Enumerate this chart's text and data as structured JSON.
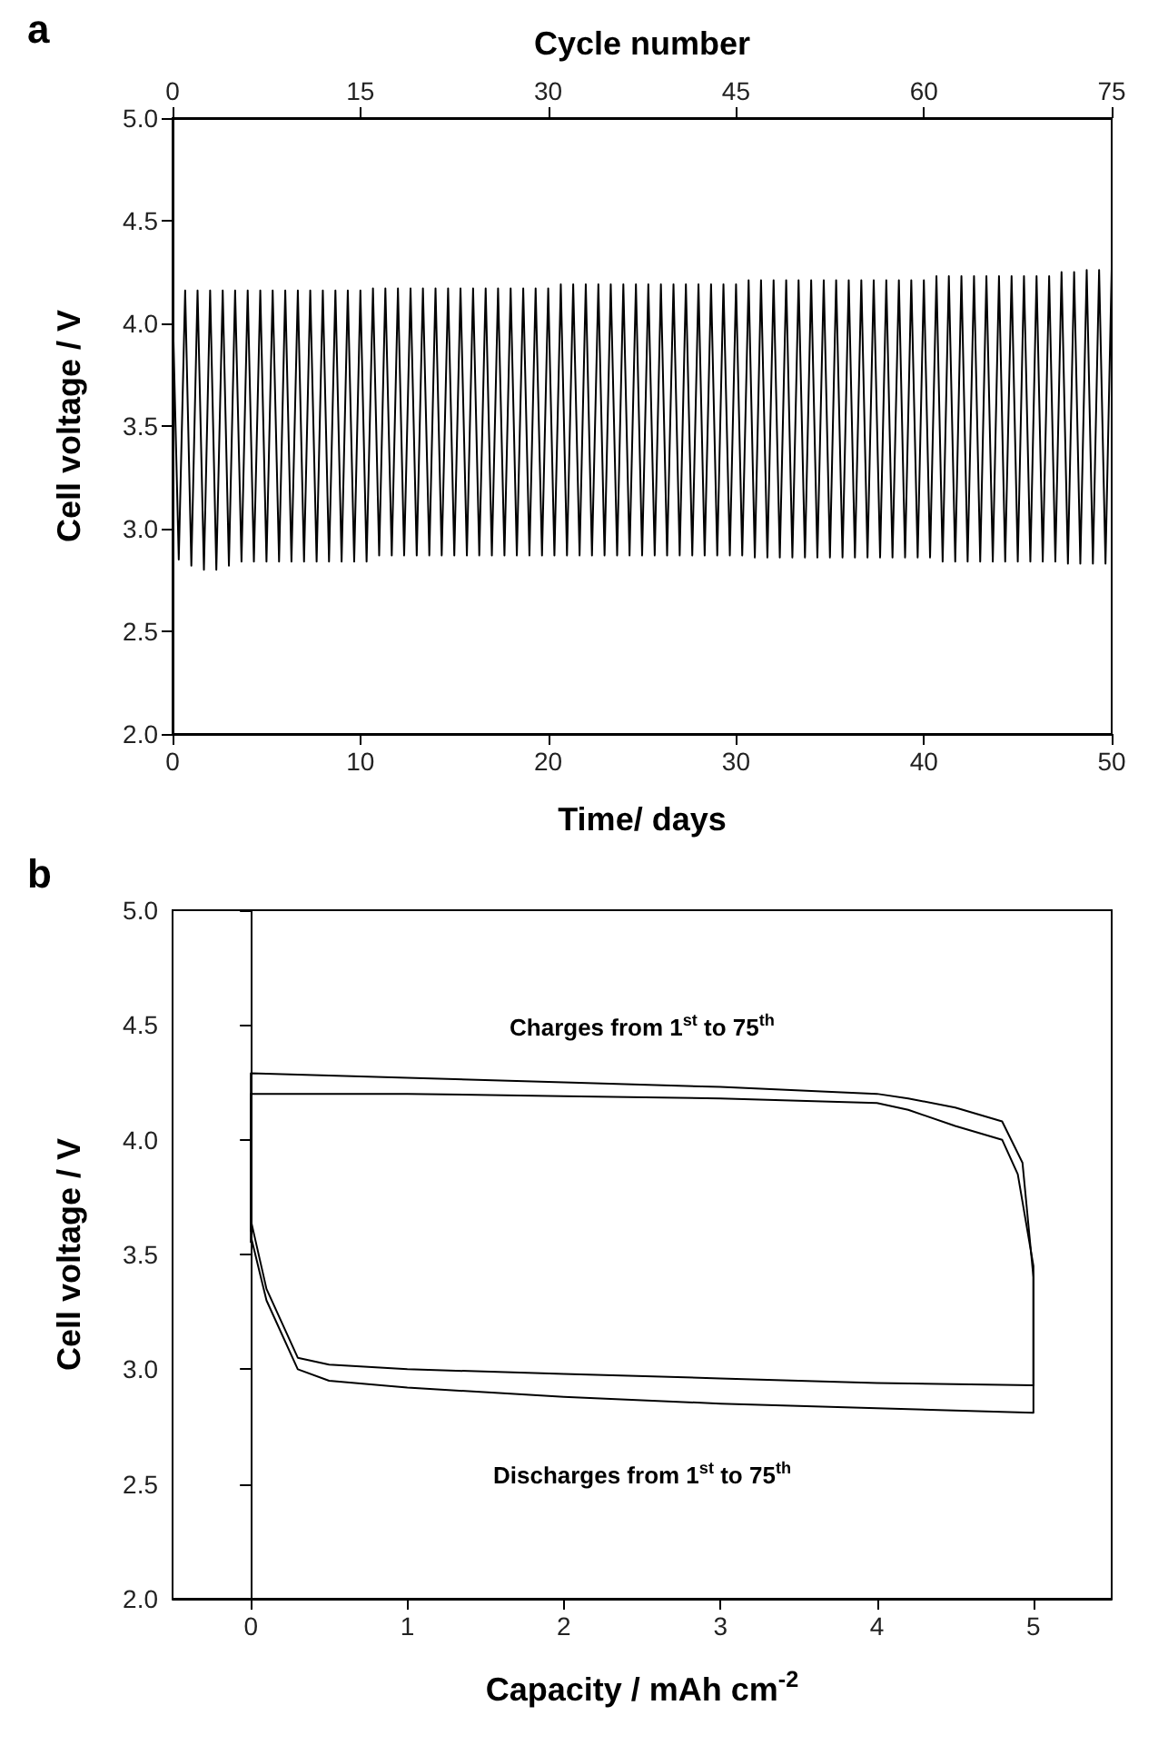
{
  "chart_data": [
    {
      "type": "line",
      "title": "a",
      "xlabel": "Time/ days",
      "x2label": "Cycle number",
      "ylabel": "Cell voltage / V",
      "xlim": [
        0,
        50
      ],
      "xticks": [
        0,
        10,
        20,
        30,
        40,
        50
      ],
      "x2lim": [
        0,
        75
      ],
      "x2ticks": [
        0,
        15,
        30,
        45,
        60,
        75
      ],
      "ylim": [
        2,
        5
      ],
      "yticks": [
        {
          "value": 2,
          "label": "2.0"
        },
        {
          "value": 2.5,
          "label": "2.5"
        },
        {
          "value": 3,
          "label": "3.0"
        },
        {
          "value": 3.5,
          "label": "3.5"
        },
        {
          "value": 4,
          "label": "4.0"
        },
        {
          "value": 4.5,
          "label": "4.5"
        },
        {
          "value": 5,
          "label": "5.0"
        }
      ],
      "series": [
        {
          "color": "#000000",
          "x": [
            0,
            0.33,
            0.67,
            1,
            1.33,
            1.67,
            2,
            2.33,
            2.67,
            3,
            3.33,
            3.67,
            4,
            4.33,
            4.67,
            5,
            5.33,
            5.67,
            6,
            6.33,
            6.67,
            7,
            7.33,
            7.67,
            8,
            8.33,
            8.67,
            9,
            9.33,
            9.67,
            10,
            10.33,
            10.67,
            11,
            11.33,
            11.67,
            12,
            12.33,
            12.67,
            13,
            13.33,
            13.67,
            14,
            14.33,
            14.67,
            15,
            15.33,
            15.67,
            16,
            16.33,
            16.67,
            17,
            17.33,
            17.67,
            18,
            18.33,
            18.67,
            19,
            19.33,
            19.67,
            20,
            20.33,
            20.67,
            21,
            21.33,
            21.67,
            22,
            22.33,
            22.67,
            23,
            23.33,
            23.67,
            24,
            24.33,
            24.67,
            25,
            25.33,
            25.67,
            26,
            26.33,
            26.67,
            27,
            27.33,
            27.67,
            28,
            28.33,
            28.67,
            29,
            29.33,
            29.67,
            30,
            30.33,
            30.67,
            31,
            31.33,
            31.67,
            32,
            32.33,
            32.67,
            33,
            33.33,
            33.67,
            34,
            34.33,
            34.67,
            35,
            35.33,
            35.67,
            36,
            36.33,
            36.67,
            37,
            37.33,
            37.67,
            38,
            38.33,
            38.67,
            39,
            39.33,
            39.67,
            40,
            40.33,
            40.67,
            41,
            41.33,
            41.67,
            42,
            42.33,
            42.67,
            43,
            43.33,
            43.67,
            44,
            44.33,
            44.67,
            45,
            45.33,
            45.67,
            46,
            46.33,
            46.67,
            47,
            47.33,
            47.67,
            48,
            48.33,
            48.67,
            49,
            49.33,
            49.67,
            50
          ],
          "values": [
            4.1,
            2.85,
            4.16,
            2.82,
            4.16,
            2.8,
            4.16,
            2.8,
            4.16,
            2.82,
            4.16,
            2.84,
            4.16,
            2.84,
            4.16,
            2.84,
            4.16,
            2.84,
            4.16,
            2.84,
            4.16,
            2.84,
            4.16,
            2.84,
            4.16,
            2.84,
            4.16,
            2.84,
            4.16,
            2.84,
            4.16,
            2.84,
            4.17,
            2.87,
            4.17,
            2.87,
            4.17,
            2.87,
            4.17,
            2.87,
            4.17,
            2.87,
            4.17,
            2.87,
            4.17,
            2.87,
            4.17,
            2.87,
            4.17,
            2.87,
            4.17,
            2.87,
            4.17,
            2.87,
            4.17,
            2.87,
            4.17,
            2.87,
            4.17,
            2.87,
            4.17,
            2.87,
            4.19,
            2.87,
            4.19,
            2.87,
            4.19,
            2.87,
            4.19,
            2.87,
            4.19,
            2.87,
            4.19,
            2.87,
            4.19,
            2.87,
            4.19,
            2.87,
            4.19,
            2.87,
            4.19,
            2.87,
            4.19,
            2.87,
            4.19,
            2.87,
            4.19,
            2.87,
            4.19,
            2.87,
            4.19,
            2.87,
            4.21,
            2.86,
            4.21,
            2.86,
            4.21,
            2.86,
            4.21,
            2.86,
            4.21,
            2.86,
            4.21,
            2.86,
            4.21,
            2.86,
            4.21,
            2.86,
            4.21,
            2.86,
            4.21,
            2.86,
            4.21,
            2.86,
            4.21,
            2.86,
            4.21,
            2.86,
            4.21,
            2.86,
            4.21,
            2.86,
            4.23,
            2.84,
            4.23,
            2.84,
            4.23,
            2.84,
            4.23,
            2.84,
            4.23,
            2.84,
            4.23,
            2.84,
            4.23,
            2.84,
            4.23,
            2.84,
            4.23,
            2.84,
            4.23,
            2.84,
            4.25,
            2.83,
            4.25,
            2.83,
            4.26,
            2.83,
            4.26,
            2.83,
            4.27
          ]
        }
      ]
    },
    {
      "type": "line",
      "title": "b",
      "xlabel": "Capacity / mAh cm$^{-2}$",
      "ylabel": "Cell voltage / V",
      "xlim": [
        -0.5,
        5.5
      ],
      "xticks": [
        0,
        1,
        2,
        3,
        4,
        5
      ],
      "ylim": [
        2,
        5
      ],
      "yticks": [
        {
          "value": 2,
          "label": "2.0"
        },
        {
          "value": 2.5,
          "label": "2.5"
        },
        {
          "value": 3,
          "label": "3.0"
        },
        {
          "value": 3.5,
          "label": "3.5"
        },
        {
          "value": 4,
          "label": "4.0"
        },
        {
          "value": 4.5,
          "label": "4.5"
        },
        {
          "value": 5,
          "label": "5.0"
        }
      ],
      "annotations": [
        "Charges from 1$^{st}$ to 75$^{th}$",
        "Discharges from 1$^{st}$ to 75$^{th}$"
      ],
      "series": [
        {
          "color": "#000000",
          "x": [
            0,
            0,
            0.5,
            1,
            2,
            3,
            4,
            4.2,
            4.5,
            4.8,
            4.9,
            5,
            5,
            4,
            3,
            2,
            1,
            0.5,
            0.3,
            0.1,
            0
          ],
          "values": [
            3.6,
            4.2,
            4.2,
            4.2,
            4.19,
            4.18,
            4.16,
            4.13,
            4.06,
            4.0,
            3.85,
            3.45,
            2.93,
            2.94,
            2.96,
            2.98,
            3.0,
            3.02,
            3.05,
            3.35,
            3.65
          ]
        },
        {
          "color": "#000000",
          "x": [
            0,
            0,
            0.5,
            1,
            2,
            3,
            4,
            4.2,
            4.5,
            4.8,
            4.93,
            5,
            5,
            4,
            3,
            2,
            1,
            0.5,
            0.3,
            0.1,
            0
          ],
          "values": [
            3.55,
            4.29,
            4.28,
            4.27,
            4.25,
            4.23,
            4.2,
            4.18,
            4.14,
            4.08,
            3.9,
            3.4,
            2.81,
            2.83,
            2.85,
            2.88,
            2.92,
            2.95,
            3.0,
            3.3,
            3.58
          ]
        }
      ]
    }
  ]
}
